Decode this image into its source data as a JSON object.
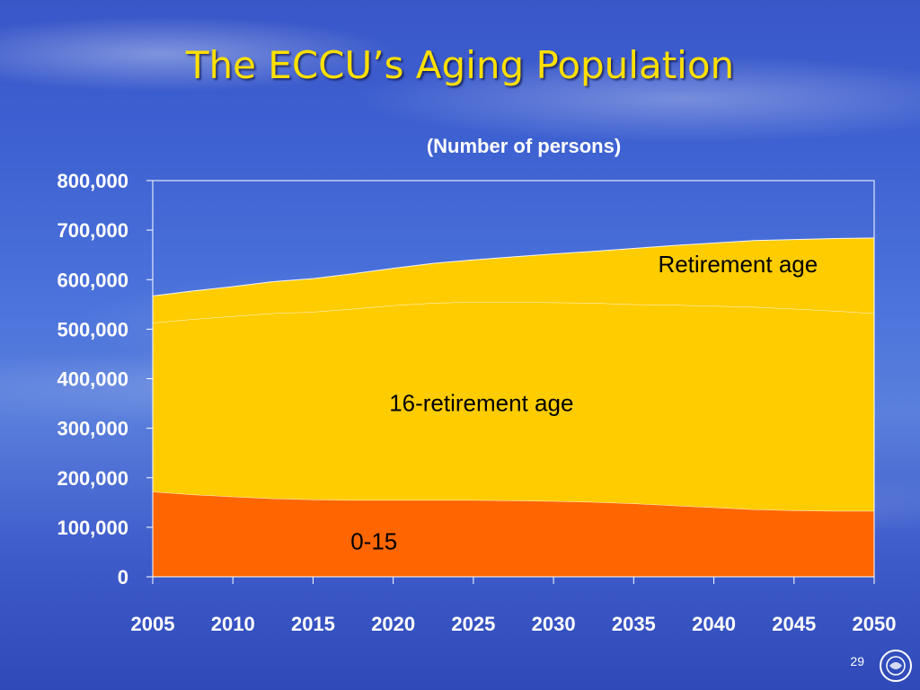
{
  "slide": {
    "title": "The ECCU’s Aging Population",
    "number": "29",
    "colors": {
      "title": "#ffe000",
      "text": "#ffffff"
    },
    "logo_icon": "imf-seal-icon"
  },
  "chart_data": {
    "type": "area",
    "stacked": true,
    "title": "(Number of persons)",
    "xlabel": "",
    "ylabel": "",
    "x": [
      2005,
      2007.5,
      2010,
      2012.5,
      2015,
      2017.5,
      2020,
      2022.5,
      2025,
      2027.5,
      2030,
      2032.5,
      2035,
      2037.5,
      2040,
      2042.5,
      2045,
      2047.5,
      2050
    ],
    "ylim": [
      0,
      800000
    ],
    "yticks": [
      "0",
      "100,000",
      "200,000",
      "300,000",
      "400,000",
      "500,000",
      "600,000",
      "700,000",
      "800,000"
    ],
    "yticks_values": [
      0,
      100000,
      200000,
      300000,
      400000,
      500000,
      600000,
      700000,
      800000
    ],
    "xticks": [
      "2005",
      "2010",
      "2015",
      "2020",
      "2025",
      "2030",
      "2035",
      "2040",
      "2045",
      "2050"
    ],
    "grid": false,
    "series": [
      {
        "name": "0-15",
        "color": "#ff6600",
        "values": [
          172000,
          166000,
          162000,
          158000,
          156000,
          155000,
          155000,
          155000,
          155000,
          154000,
          153000,
          151000,
          148000,
          144000,
          140000,
          136000,
          134000,
          133000,
          133000
        ]
      },
      {
        "name": "16-retirement age",
        "color": "#ffcc00",
        "values": [
          341000,
          354000,
          364000,
          374000,
          379000,
          386000,
          393000,
          398000,
          400000,
          401000,
          401000,
          402000,
          402000,
          405000,
          407000,
          409000,
          407000,
          404000,
          399000
        ]
      },
      {
        "name": "Retirement age",
        "color": "#ffcc00",
        "values": [
          54000,
          57000,
          60000,
          64000,
          67000,
          71000,
          75000,
          80000,
          85000,
          91000,
          98000,
          104000,
          113000,
          120000,
          127000,
          134000,
          140000,
          146000,
          152000
        ]
      }
    ],
    "labels": [
      {
        "text": "Retirement age",
        "x": 2041.5,
        "y": 615000
      },
      {
        "text": "16-retirement age",
        "x": 2025.5,
        "y": 335000
      },
      {
        "text": "0-15",
        "x": 2018.8,
        "y": 55000
      }
    ]
  }
}
